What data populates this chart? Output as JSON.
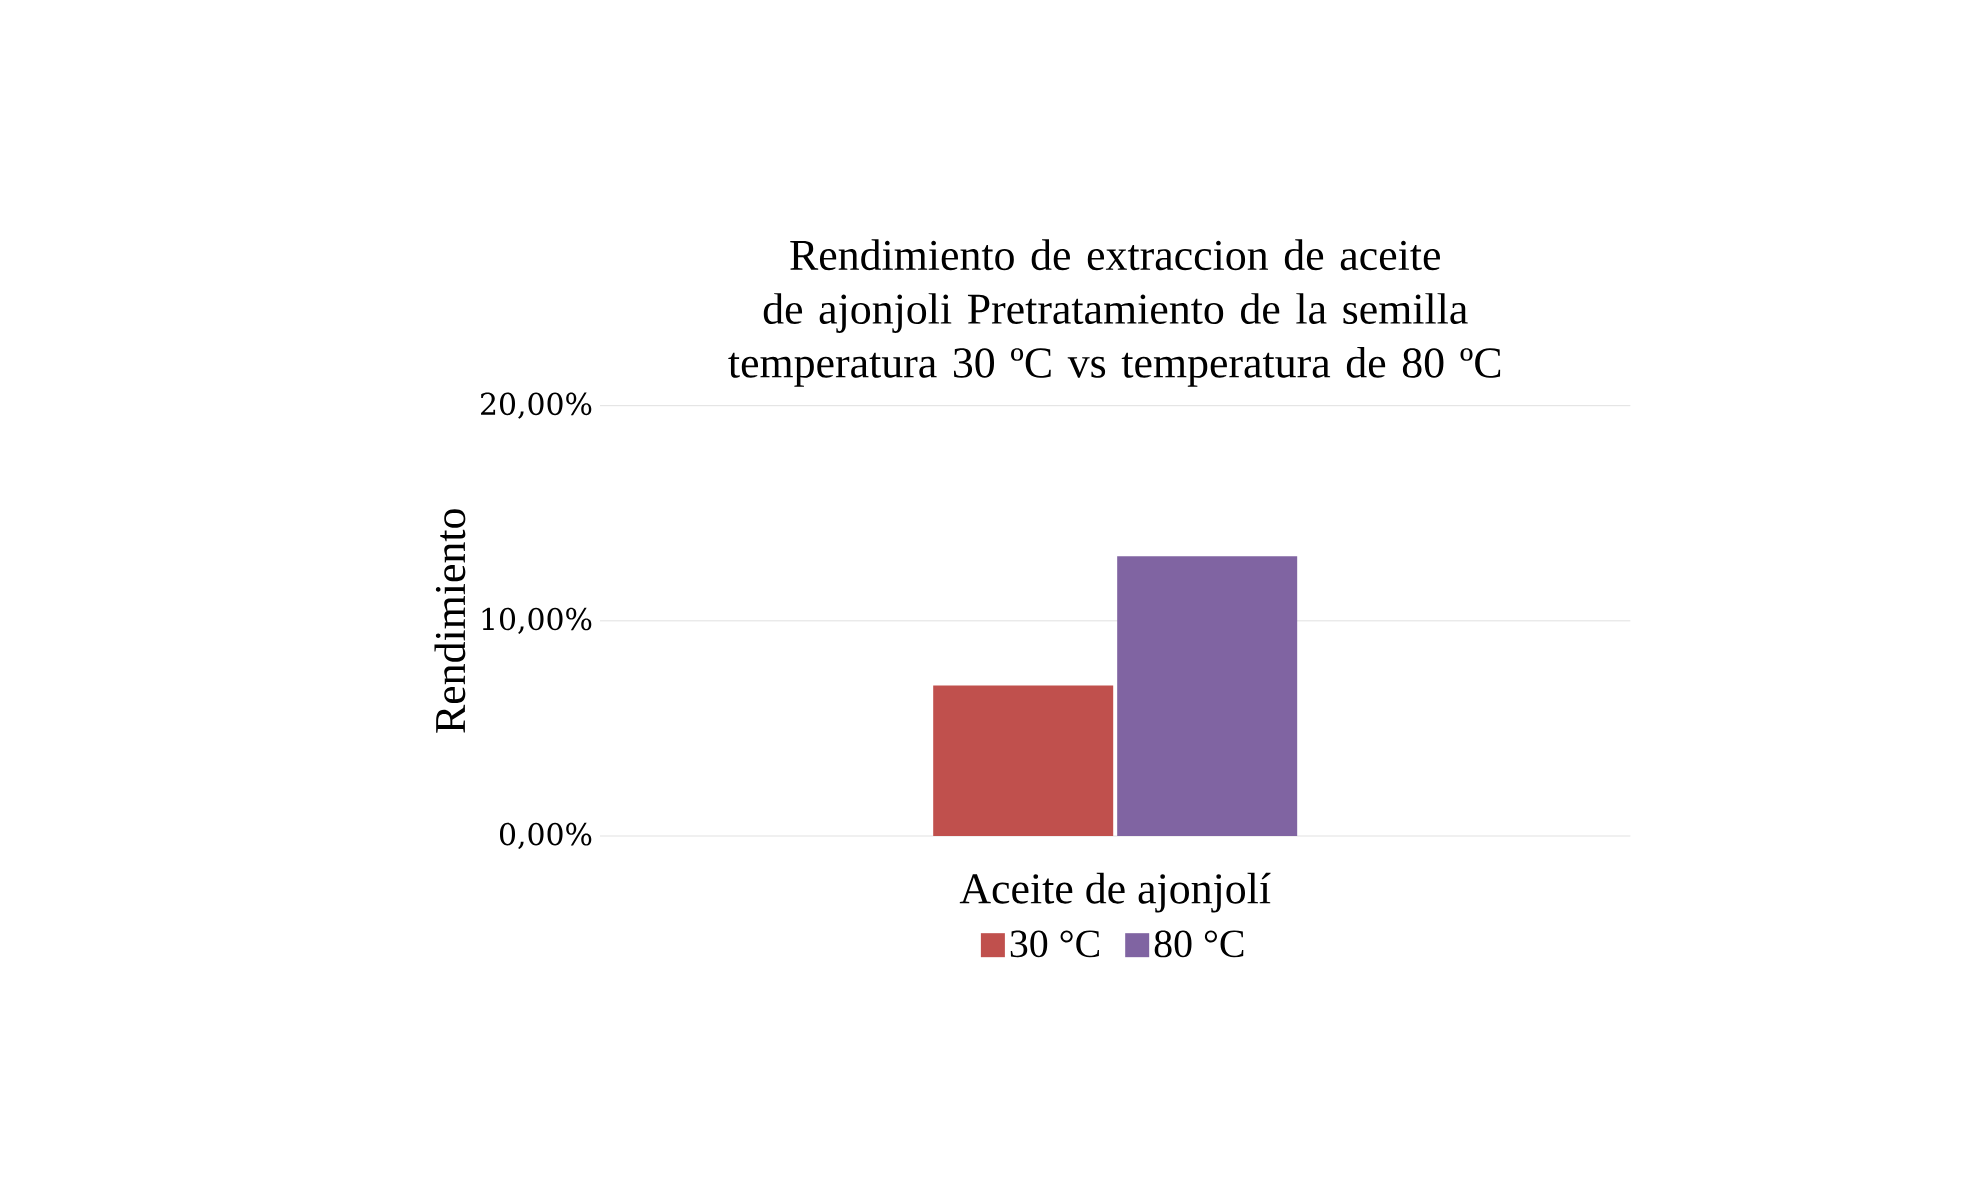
{
  "chart_data": {
    "type": "bar",
    "title": "Rendimiento de extraccion de aceite de ajonjoli Pretratamiento de la semilla temperatura 30 ºC vs temperatura de 80 ºC",
    "xlabel": "Aceite de ajonjolí",
    "ylabel": "Rendimiento",
    "categories": [
      null
    ],
    "series": [
      {
        "name": "30 °C",
        "color": "#c0504d",
        "values": [
          7
        ]
      },
      {
        "name": "80 °C",
        "color": "#8064a2",
        "values": [
          13
        ]
      }
    ],
    "ylim": [
      0,
      20
    ],
    "yticks": [
      {
        "value": 0,
        "label": "0,00%"
      },
      {
        "value": 10,
        "label": "10,00%"
      },
      {
        "value": 20,
        "label": "20,00%"
      }
    ],
    "grid": "y",
    "legend": "bottom"
  }
}
